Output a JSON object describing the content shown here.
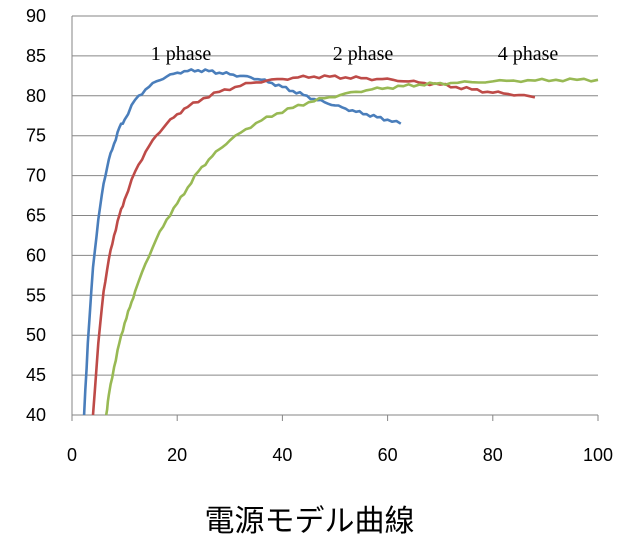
{
  "caption": "電源モデル曲線",
  "chart_data": {
    "type": "line",
    "title": "",
    "xlabel": "",
    "ylabel": "",
    "xlim": [
      0,
      100
    ],
    "ylim": [
      40,
      90
    ],
    "x_ticks": [
      0,
      20,
      40,
      60,
      80,
      100
    ],
    "y_ticks": [
      40,
      45,
      50,
      55,
      60,
      65,
      70,
      75,
      80,
      85,
      90
    ],
    "grid": "horizontal",
    "legend": "none",
    "series": [
      {
        "name": "1 phase",
        "color": "#4a7ebb",
        "x": [
          2.3,
          3,
          4,
          5,
          6,
          7,
          8,
          9,
          10,
          12,
          14,
          16,
          18,
          20,
          22,
          24,
          26,
          28,
          30,
          32,
          34,
          36,
          38,
          40,
          42,
          44,
          46,
          48,
          50,
          52,
          54,
          56,
          58,
          60,
          62.5
        ],
        "y": [
          40,
          49,
          58.5,
          64.5,
          69,
          72,
          74,
          76,
          77,
          79.5,
          80.8,
          81.8,
          82.4,
          82.9,
          83.1,
          83.2,
          83.1,
          82.9,
          82.7,
          82.5,
          82.3,
          82.0,
          81.6,
          81.1,
          80.6,
          80.1,
          79.6,
          79.2,
          78.8,
          78.4,
          78.0,
          77.7,
          77.3,
          77.0,
          76.5
        ]
      },
      {
        "name": "2 phase",
        "color": "#be4b48",
        "x": [
          4,
          5,
          6,
          7,
          8,
          9,
          10,
          12,
          14,
          16,
          18,
          20,
          22,
          25,
          28,
          31,
          34,
          37,
          40,
          43,
          46,
          49,
          52,
          55,
          58,
          61,
          64,
          67,
          70,
          73,
          76,
          79,
          82,
          85,
          88
        ],
        "y": [
          40,
          49,
          55.5,
          59.5,
          62.5,
          65,
          67,
          70.5,
          73,
          75,
          76.5,
          77.7,
          78.6,
          79.7,
          80.5,
          81.1,
          81.6,
          81.9,
          82.1,
          82.3,
          82.4,
          82.4,
          82.3,
          82.2,
          82.1,
          82.0,
          81.8,
          81.6,
          81.4,
          81.1,
          80.8,
          80.5,
          80.3,
          80.1,
          79.8
        ]
      },
      {
        "name": "4 phase",
        "color": "#98b954",
        "x": [
          6.5,
          7,
          8,
          9,
          10,
          11,
          12,
          14,
          16,
          18,
          20,
          22,
          24,
          26,
          28,
          30,
          33,
          36,
          39,
          42,
          45,
          48,
          51,
          54,
          57,
          60,
          63,
          66,
          69,
          72,
          76,
          80,
          84,
          88,
          92,
          96,
          100
        ],
        "y": [
          40,
          42.5,
          46,
          49,
          51.5,
          53.5,
          55.5,
          59,
          62,
          64.5,
          66.5,
          68.5,
          70.5,
          72,
          73.3,
          74.4,
          75.8,
          76.9,
          77.8,
          78.5,
          79.2,
          79.7,
          80.1,
          80.5,
          80.8,
          81.0,
          81.2,
          81.4,
          81.5,
          81.6,
          81.7,
          81.8,
          81.9,
          81.9,
          82.0,
          82.0,
          82.0
        ]
      }
    ]
  }
}
